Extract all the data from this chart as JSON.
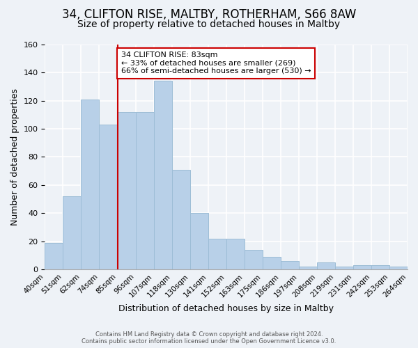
{
  "title": "34, CLIFTON RISE, MALTBY, ROTHERHAM, S66 8AW",
  "subtitle": "Size of property relative to detached houses in Maltby",
  "xlabel": "Distribution of detached houses by size in Maltby",
  "ylabel": "Number of detached properties",
  "footer_line1": "Contains HM Land Registry data © Crown copyright and database right 2024.",
  "footer_line2": "Contains public sector information licensed under the Open Government Licence v3.0.",
  "bin_labels": [
    "40sqm",
    "51sqm",
    "62sqm",
    "74sqm",
    "85sqm",
    "96sqm",
    "107sqm",
    "118sqm",
    "130sqm",
    "141sqm",
    "152sqm",
    "163sqm",
    "175sqm",
    "186sqm",
    "197sqm",
    "208sqm",
    "219sqm",
    "231sqm",
    "242sqm",
    "253sqm"
  ],
  "bar_heights": [
    19,
    52,
    121,
    103,
    112,
    112,
    134,
    71,
    40,
    22,
    22,
    14,
    9,
    6,
    2,
    5,
    2,
    3,
    3,
    2
  ],
  "bar_color": "#b8d0e8",
  "bar_edge_color": "#9dbdd6",
  "vline_x_index": 4,
  "vline_color": "#cc0000",
  "annotation_title": "34 CLIFTON RISE: 83sqm",
  "annotation_line1": "← 33% of detached houses are smaller (269)",
  "annotation_line2": "66% of semi-detached houses are larger (530) →",
  "annotation_box_edge": "#cc0000",
  "ylim": [
    0,
    160
  ],
  "yticks": [
    0,
    20,
    40,
    60,
    80,
    100,
    120,
    140,
    160
  ],
  "background_color": "#eef2f7",
  "plot_background": "#eef2f7",
  "title_fontsize": 12,
  "subtitle_fontsize": 10,
  "extra_label": "264sqm"
}
